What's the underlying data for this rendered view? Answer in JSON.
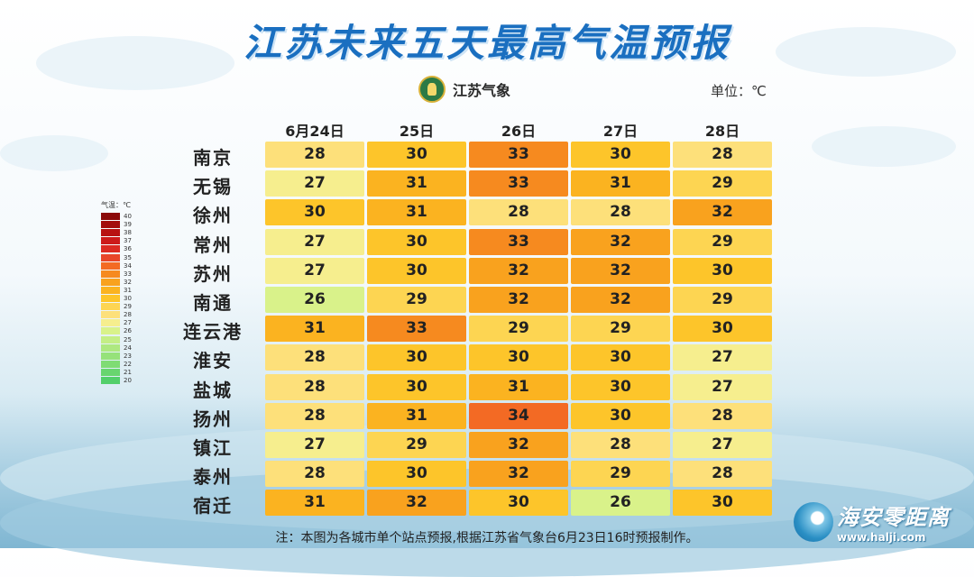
{
  "title": "江苏未来五天最高气温预报",
  "logo": {
    "icon": "meteorological-bureau-emblem",
    "text": "江苏气象"
  },
  "unit_label": "单位：℃",
  "footnote": "注：本图为各城市单个站点预报,根据江苏省气象台6月23日16时预报制作。",
  "watermark": {
    "name": "海安零距离",
    "url": "www.halji.com"
  },
  "colors": {
    "title": "#1a6fc0"
  },
  "chart_data": {
    "type": "heatmap",
    "title": "江苏未来五天最高气温预报",
    "unit": "℃",
    "columns": [
      "6月24日",
      "25日",
      "26日",
      "27日",
      "28日"
    ],
    "rows": [
      "南京",
      "无锡",
      "徐州",
      "常州",
      "苏州",
      "南通",
      "连云港",
      "淮安",
      "盐城",
      "扬州",
      "镇江",
      "泰州",
      "宿迁"
    ],
    "values": [
      [
        28,
        30,
        33,
        30,
        28
      ],
      [
        27,
        31,
        33,
        31,
        29
      ],
      [
        30,
        31,
        28,
        28,
        32
      ],
      [
        27,
        30,
        33,
        32,
        29
      ],
      [
        27,
        30,
        32,
        32,
        30
      ],
      [
        26,
        29,
        32,
        32,
        29
      ],
      [
        31,
        33,
        29,
        29,
        30
      ],
      [
        28,
        30,
        30,
        30,
        27
      ],
      [
        28,
        30,
        31,
        30,
        27
      ],
      [
        28,
        31,
        34,
        30,
        28
      ],
      [
        27,
        29,
        32,
        28,
        27
      ],
      [
        28,
        30,
        32,
        29,
        28
      ],
      [
        31,
        32,
        30,
        26,
        30
      ]
    ],
    "legend": {
      "title": "气温：℃",
      "levels": [
        40,
        39,
        38,
        37,
        36,
        35,
        34,
        33,
        32,
        31,
        30,
        29,
        28,
        27,
        26,
        25,
        24,
        23,
        22,
        21,
        20
      ],
      "colors": {
        "40": "#8b0a0a",
        "39": "#a30d0d",
        "38": "#b81212",
        "37": "#cc1a1a",
        "36": "#dc2a22",
        "35": "#e8462a",
        "34": "#f36a24",
        "33": "#f68a1f",
        "32": "#f9a21e",
        "31": "#fbb320",
        "30": "#fdc52a",
        "29": "#fdd552",
        "28": "#fde07a",
        "27": "#f6ee8e",
        "26": "#d9f28a",
        "25": "#c4ee86",
        "24": "#aee880",
        "23": "#96e27a",
        "22": "#7fdc74",
        "21": "#68d56f",
        "20": "#52cf6a"
      }
    }
  }
}
